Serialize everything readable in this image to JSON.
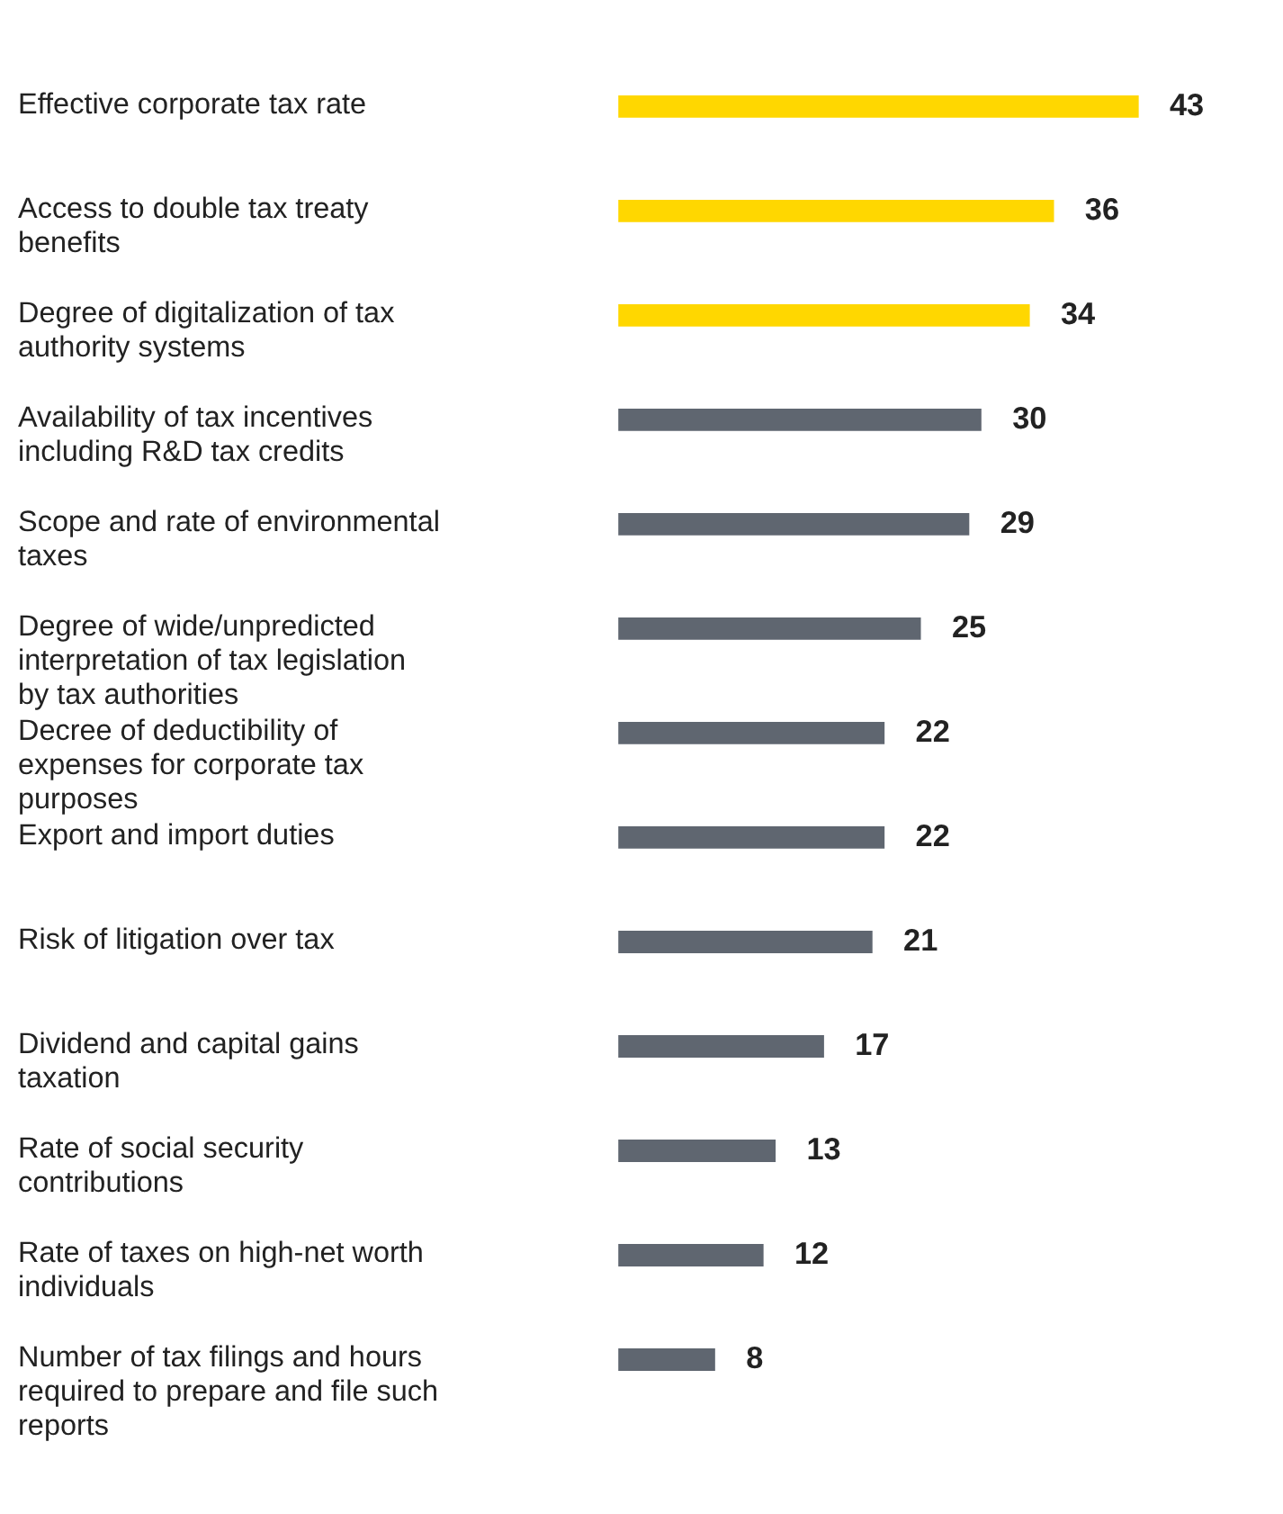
{
  "chart_data": {
    "type": "bar",
    "orientation": "horizontal",
    "data_labels": true,
    "categories": [
      "Effective corporate tax rate",
      "Access to double tax treaty benefits",
      "Degree of digitalization of tax authority systems",
      "Availability of tax incentives including R&D tax credits",
      "Scope and rate of environmental taxes",
      "Degree of wide/unpredicted interpretation of tax legislation by tax authorities",
      "Decree of deductibility of expenses for corporate tax purposes",
      "Export and import duties",
      "Risk of litigation over tax",
      "Dividend and capital gains taxation",
      "Rate of social security contributions",
      "Rate of taxes on high-net worth individuals",
      "Number of tax filings and hours required to prepare and file such reports"
    ],
    "values": [
      43,
      36,
      34,
      30,
      29,
      25,
      22,
      22,
      21,
      17,
      13,
      12,
      8
    ],
    "colors": [
      "#ffd700",
      "#ffd700",
      "#ffd700",
      "#5f6670",
      "#5f6670",
      "#5f6670",
      "#5f6670",
      "#5f6670",
      "#5f6670",
      "#5f6670",
      "#5f6670",
      "#5f6670",
      "#5f6670"
    ]
  }
}
